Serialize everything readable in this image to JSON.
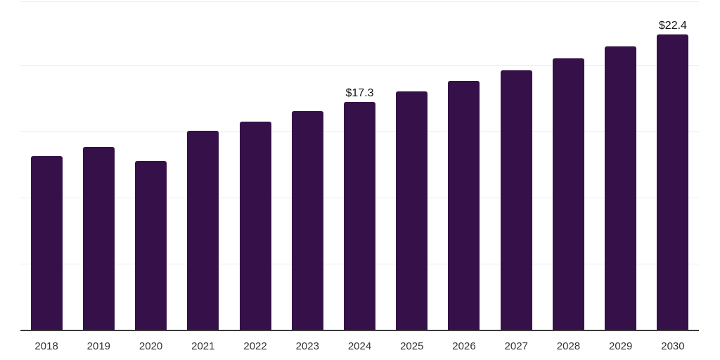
{
  "chart_data": {
    "type": "bar",
    "title": "",
    "xlabel": "",
    "ylabel": "",
    "categories": [
      "2018",
      "2019",
      "2020",
      "2021",
      "2022",
      "2023",
      "2024",
      "2025",
      "2026",
      "2027",
      "2028",
      "2029",
      "2030"
    ],
    "values": [
      13.2,
      13.9,
      12.8,
      15.1,
      15.8,
      16.6,
      17.3,
      18.1,
      18.9,
      19.7,
      20.6,
      21.5,
      22.4
    ],
    "data_labels": [
      "",
      "",
      "",
      "",
      "",
      "",
      "$17.3",
      "",
      "",
      "",
      "",
      "",
      "$22.4"
    ],
    "ylim": [
      0,
      25
    ],
    "gridlines": [
      5,
      10,
      15,
      20,
      25
    ],
    "grid": true,
    "legend": false,
    "y_axis_tick_labels_visible": false,
    "colors": {
      "bar": "#361149",
      "grid": "#ededed",
      "axis": "#3a3a3a",
      "tick_label": "#333333",
      "value_label": "#111111",
      "background": "#ffffff"
    }
  }
}
